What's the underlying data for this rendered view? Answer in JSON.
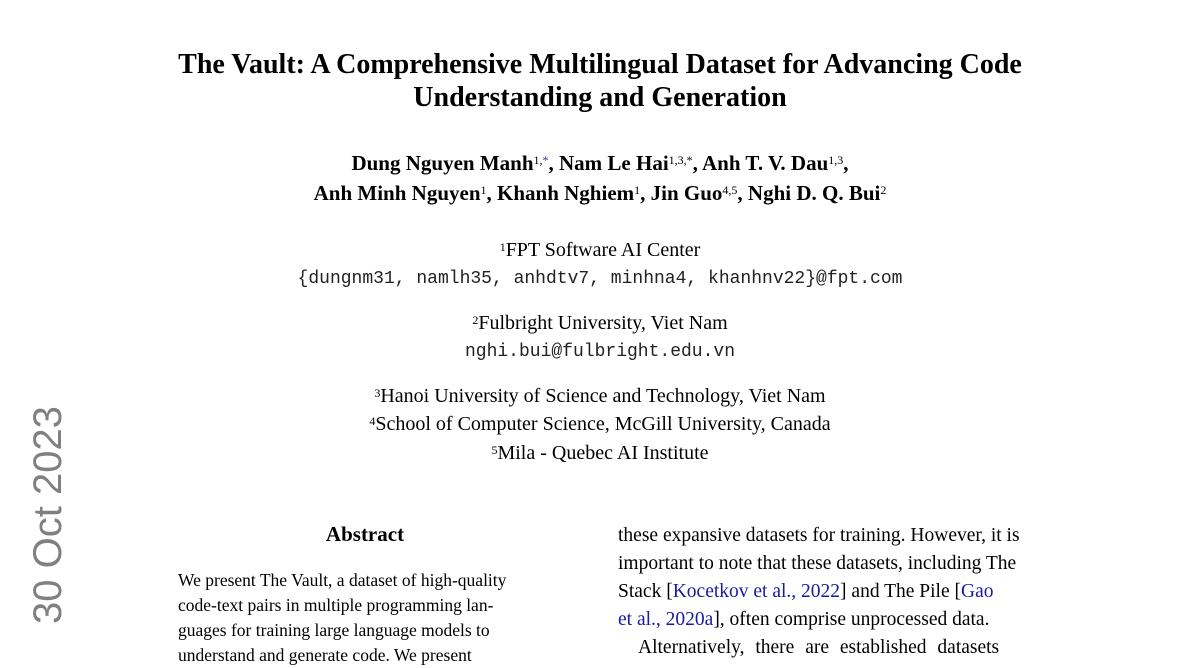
{
  "paper": {
    "title_lines": [
      "The Vault: A Comprehensive Multilingual Dataset for Advancing Code",
      "Understanding and Generation"
    ],
    "authors": {
      "a1": "Dung Nguyen Manh",
      "a1_sup": "1,",
      "a1_star": "*",
      "a2": ", Nam Le Hai",
      "a2_sup": "1,3,*",
      "a3": ", Anh T. V. Dau",
      "a3_sup": "1,3",
      "a3_after": ",",
      "a4": "Anh Minh Nguyen",
      "a4_sup": "1",
      "a5": ", Khanh Nghiem",
      "a5_sup": "1",
      "a6": ", Jin Guo",
      "a6_sup": "4,5",
      "a7": ", Nghi D. Q. Bui",
      "a7_sup": "2"
    },
    "affiliations": [
      {
        "sup": "1",
        "name": "FPT Software AI Center",
        "email": "{dungnm31, namlh35, anhdtv7, minhna4, khanhnv22}@fpt.com"
      },
      {
        "sup": "2",
        "name": "Fulbright University, Viet Nam",
        "email": "nghi.bui@fulbright.edu.vn"
      },
      {
        "sup": "3",
        "name": "Hanoi University of Science and Technology, Viet Nam"
      },
      {
        "sup": "4",
        "name": "School of Computer Science, McGill University, Canada"
      },
      {
        "sup": "5",
        "name": "Mila - Quebec AI Institute"
      }
    ],
    "arxiv_date": "30 Oct 2023",
    "abstract_heading": "Abstract",
    "abstract_lines": [
      "We present The Vault, a dataset of high-quality",
      "code-text pairs in multiple programming lan-",
      "guages for training large language models to",
      "understand and generate code. We present"
    ],
    "right_column": {
      "l1": "these expansive datasets for training. However, it is",
      "l2": "important to note that these datasets, including The",
      "l3a": "Stack [",
      "l3_cite1": "Kocetkov et al., 2022",
      "l3b": "] and The Pile [",
      "l3_cite2": "Gao",
      "l4_cite2": "et al., 2020a",
      "l4b": "], often comprise unprocessed data.",
      "l5": "Alternatively, there are established datasets"
    },
    "link_color": "#1a1a9e"
  }
}
